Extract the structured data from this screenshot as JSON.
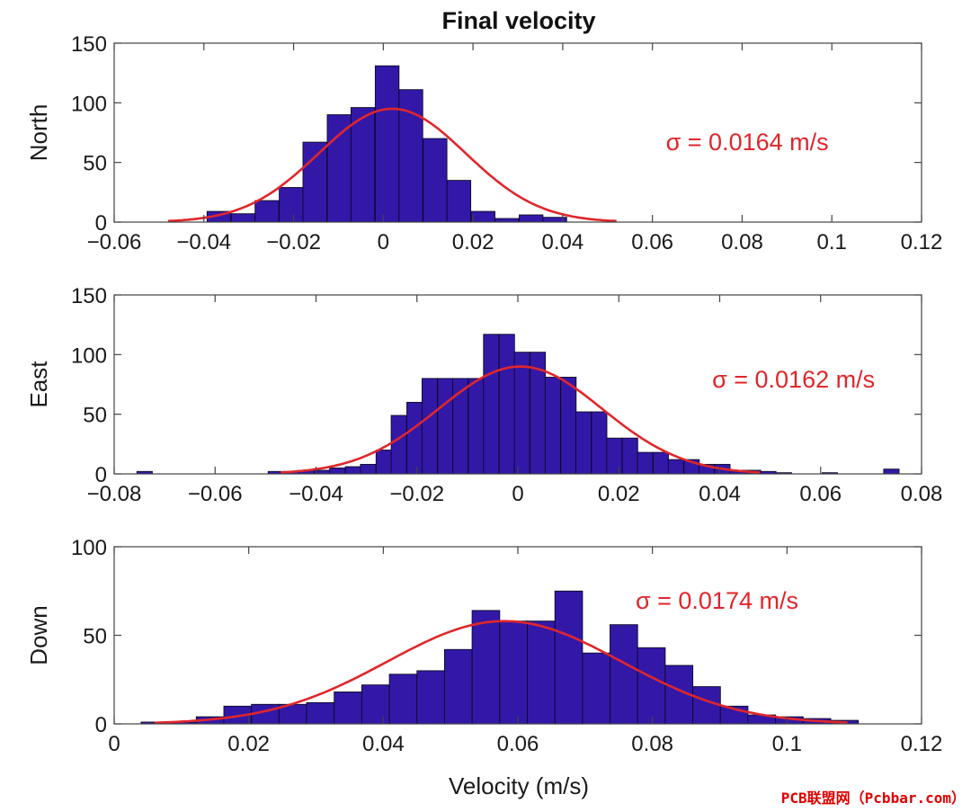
{
  "title": "Final velocity",
  "watermark": "PCB联盟网（Pcbbar.com）",
  "colors": {
    "bar": "#3318a8",
    "bar_edge": "#0a0a22",
    "fit": "#e0262b",
    "axis": "#444444"
  },
  "chart_data": [
    {
      "type": "bar",
      "ylabel": "North",
      "xlim": [
        -0.06,
        0.12
      ],
      "ylim": [
        0,
        150
      ],
      "xticks": [
        -0.06,
        -0.04,
        -0.02,
        0,
        0.02,
        0.04,
        0.06,
        0.08,
        0.1,
        0.12
      ],
      "xtick_labels": [
        "−0.06",
        "−0.04",
        "−0.02",
        "0",
        "0.02",
        "0.04",
        "0.06",
        "0.08",
        "0.1",
        "0.12"
      ],
      "yticks": [
        0,
        50,
        100,
        150
      ],
      "ytick_labels": [
        "0",
        "50",
        "100",
        "150"
      ],
      "bin_width": 0.0107,
      "bins": [
        {
          "x0": -0.0607,
          "y": 2
        },
        {
          "x0": -0.05,
          "y": 1
        },
        {
          "x0": -0.0393,
          "y": 8
        },
        {
          "x0": -0.0286,
          "y": 18
        },
        {
          "x0": -0.0179,
          "y": 67
        },
        {
          "x0": -0.0072,
          "y": 131
        },
        {
          "x0": 0.0035,
          "y": 111
        },
        {
          "x0": 0.0142,
          "y": 35
        },
        {
          "x0": 0.0249,
          "y": 2
        },
        {
          "x0": 0.0356,
          "y": 5
        },
        {
          "x0": 0.0463,
          "y": 1
        },
        {
          "x0": 0.057,
          "y": 1
        },
        {
          "x0": 0.0677,
          "y": 1
        },
        {
          "x0": 0.0784,
          "y": 1
        },
        {
          "x0": 0.0891,
          "y": 1
        },
        {
          "x0": 0.0998,
          "y": 1
        }
      ],
      "bins_fine": [
        {
          "x0": -0.0393,
          "y": 9
        },
        {
          "x0": -0.0339,
          "y": 7
        },
        {
          "x0": -0.0286,
          "y": 18
        },
        {
          "x0": -0.0232,
          "y": 29
        },
        {
          "x0": -0.0179,
          "y": 67
        },
        {
          "x0": -0.0125,
          "y": 90
        },
        {
          "x0": -0.0072,
          "y": 96
        },
        {
          "x0": -0.0018,
          "y": 131
        },
        {
          "x0": 0.0035,
          "y": 111
        },
        {
          "x0": 0.0089,
          "y": 70
        },
        {
          "x0": 0.0142,
          "y": 35
        },
        {
          "x0": 0.0196,
          "y": 9
        },
        {
          "x0": 0.0249,
          "y": 3
        },
        {
          "x0": 0.0303,
          "y": 6
        },
        {
          "x0": 0.0356,
          "y": 4
        }
      ],
      "fit": {
        "mu": 0.002,
        "sigma": 0.0164,
        "peak": 95,
        "range": [
          -0.048,
          0.052
        ]
      },
      "annotation": "σ = 0.0164 m/s",
      "annotation_at": {
        "x": 0.063,
        "y": 68
      }
    },
    {
      "type": "bar",
      "ylabel": "East",
      "xlim": [
        -0.08,
        0.08
      ],
      "ylim": [
        0,
        150
      ],
      "xticks": [
        -0.08,
        -0.06,
        -0.04,
        -0.02,
        0,
        0.02,
        0.04,
        0.06,
        0.08
      ],
      "xtick_labels": [
        "−0.08",
        "−0.06",
        "−0.04",
        "−0.02",
        "0",
        "0.02",
        "0.04",
        "0.06",
        "0.08"
      ],
      "yticks": [
        0,
        50,
        100,
        150
      ],
      "ytick_labels": [
        "0",
        "50",
        "100",
        "150"
      ],
      "bins_fine": [
        {
          "x0": -0.0755,
          "y": 2
        },
        {
          "x0": -0.0495,
          "y": 2
        },
        {
          "x0": -0.0464,
          "y": 2
        },
        {
          "x0": -0.0434,
          "y": 3
        },
        {
          "x0": -0.0403,
          "y": 3
        },
        {
          "x0": -0.0373,
          "y": 5
        },
        {
          "x0": -0.0342,
          "y": 6
        },
        {
          "x0": -0.0312,
          "y": 8
        },
        {
          "x0": -0.0281,
          "y": 20
        },
        {
          "x0": -0.0251,
          "y": 49
        },
        {
          "x0": -0.022,
          "y": 60
        },
        {
          "x0": -0.019,
          "y": 80
        },
        {
          "x0": -0.0159,
          "y": 80
        },
        {
          "x0": -0.0129,
          "y": 80
        },
        {
          "x0": -0.0098,
          "y": 80
        },
        {
          "x0": -0.0068,
          "y": 117
        },
        {
          "x0": -0.0037,
          "y": 117
        },
        {
          "x0": -0.0007,
          "y": 102
        },
        {
          "x0": 0.0024,
          "y": 102
        },
        {
          "x0": 0.0054,
          "y": 81
        },
        {
          "x0": 0.0085,
          "y": 81
        },
        {
          "x0": 0.0115,
          "y": 52
        },
        {
          "x0": 0.0146,
          "y": 52
        },
        {
          "x0": 0.0176,
          "y": 30
        },
        {
          "x0": 0.0207,
          "y": 30
        },
        {
          "x0": 0.0237,
          "y": 18
        },
        {
          "x0": 0.0268,
          "y": 18
        },
        {
          "x0": 0.0298,
          "y": 12
        },
        {
          "x0": 0.0329,
          "y": 12
        },
        {
          "x0": 0.0359,
          "y": 8
        },
        {
          "x0": 0.039,
          "y": 8
        },
        {
          "x0": 0.042,
          "y": 3
        },
        {
          "x0": 0.0451,
          "y": 3
        },
        {
          "x0": 0.0481,
          "y": 2
        },
        {
          "x0": 0.0512,
          "y": 1
        },
        {
          "x0": 0.0603,
          "y": 1
        },
        {
          "x0": 0.0725,
          "y": 4
        }
      ],
      "fit": {
        "mu": 0.0005,
        "sigma": 0.0162,
        "peak": 90,
        "range": [
          -0.047,
          0.048
        ]
      },
      "annotation": "σ = 0.0162 m/s",
      "annotation_at": {
        "x": 0.0385,
        "y": 80
      }
    },
    {
      "type": "bar",
      "ylabel": "Down",
      "xlabel": "Velocity (m/s)",
      "xlim": [
        0,
        0.12
      ],
      "ylim": [
        0,
        100
      ],
      "xticks": [
        0,
        0.02,
        0.04,
        0.06,
        0.08,
        0.1,
        0.12
      ],
      "xtick_labels": [
        "0",
        "0.02",
        "0.04",
        "0.06",
        "0.08",
        "0.1",
        "0.12"
      ],
      "yticks": [
        0,
        50,
        100
      ],
      "ytick_labels": [
        "0",
        "50",
        "100"
      ],
      "bins_fine": [
        {
          "x0": 0.004,
          "y": 1
        },
        {
          "x0": 0.0081,
          "y": 1
        },
        {
          "x0": 0.0122,
          "y": 4
        },
        {
          "x0": 0.0163,
          "y": 10
        },
        {
          "x0": 0.0204,
          "y": 11
        },
        {
          "x0": 0.0245,
          "y": 11
        },
        {
          "x0": 0.0286,
          "y": 12
        },
        {
          "x0": 0.0327,
          "y": 18
        },
        {
          "x0": 0.0368,
          "y": 22
        },
        {
          "x0": 0.0409,
          "y": 28
        },
        {
          "x0": 0.045,
          "y": 30
        },
        {
          "x0": 0.0491,
          "y": 42
        },
        {
          "x0": 0.0532,
          "y": 64
        },
        {
          "x0": 0.0573,
          "y": 58
        },
        {
          "x0": 0.0614,
          "y": 58
        },
        {
          "x0": 0.0655,
          "y": 75
        },
        {
          "x0": 0.0696,
          "y": 40
        },
        {
          "x0": 0.0737,
          "y": 56
        },
        {
          "x0": 0.0778,
          "y": 43
        },
        {
          "x0": 0.0819,
          "y": 33
        },
        {
          "x0": 0.086,
          "y": 21
        },
        {
          "x0": 0.0901,
          "y": 10
        },
        {
          "x0": 0.0942,
          "y": 5
        },
        {
          "x0": 0.0983,
          "y": 4
        },
        {
          "x0": 0.1024,
          "y": 3
        },
        {
          "x0": 0.1065,
          "y": 2
        }
      ],
      "fit": {
        "mu": 0.058,
        "sigma": 0.0174,
        "peak": 58,
        "range": [
          0.006,
          0.109
        ]
      },
      "annotation": "σ = 0.0174 m/s",
      "annotation_at": {
        "x": 0.0775,
        "y": 70
      }
    }
  ]
}
